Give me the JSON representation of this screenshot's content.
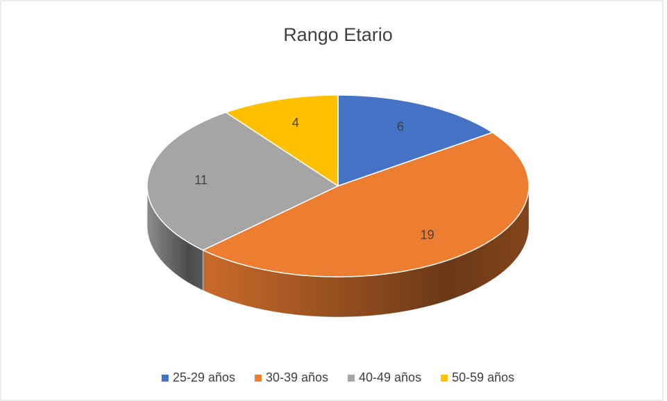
{
  "chart_data": {
    "type": "pie",
    "title": "Rango Etario",
    "categories": [
      "25-29 años",
      "30-39 años",
      "40-49 años",
      "50-59 años"
    ],
    "values": [
      6,
      19,
      11,
      4
    ],
    "colors": [
      "#4472c4",
      "#ed7d31",
      "#a5a5a5",
      "#ffc000"
    ],
    "legend": "bottom"
  }
}
